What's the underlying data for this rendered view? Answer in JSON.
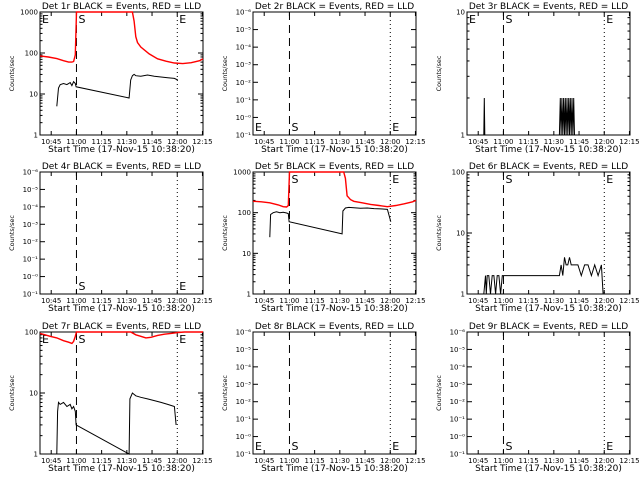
{
  "chart_data": [
    {
      "type": "line",
      "title": "Det 1r BLACK = Events, RED = LLD",
      "xlabel": "Start Time (17-Nov-15 10:38:20)",
      "ylabel": "Counts/sec",
      "x_ticks": [
        "10:45",
        "11:00",
        "11:15",
        "11:30",
        "11:45",
        "12:00",
        "12:15"
      ],
      "y_ticks": [
        "1",
        "10",
        "100",
        "1000"
      ],
      "yscale": "log",
      "ylim": [
        1,
        1000
      ],
      "markers": [
        {
          "label": "E",
          "t": 0.0,
          "style": "dotted"
        },
        {
          "label": "S",
          "t": 21.7,
          "style": "dashed"
        },
        {
          "label": "E",
          "t": 81.7,
          "style": "dotted"
        }
      ],
      "series": [
        {
          "color": "#ff0000",
          "x": [
            0,
            5,
            10,
            14,
            17,
            19,
            20,
            21,
            21.7,
            23,
            30,
            50,
            55,
            56,
            57,
            58,
            60,
            65,
            70,
            75,
            80,
            85,
            90,
            95,
            97
          ],
          "y": [
            85,
            80,
            73,
            65,
            60,
            60,
            62,
            90,
            1000,
            1000,
            1000,
            1000,
            1000,
            600,
            250,
            180,
            140,
            95,
            72,
            63,
            57,
            55,
            58,
            65,
            72
          ]
        },
        {
          "color": "#000000",
          "x": [
            10,
            11,
            12,
            14,
            16,
            18,
            19,
            20,
            21,
            21.5,
            53,
            54,
            55,
            56,
            57,
            60,
            64,
            68,
            72,
            76,
            80,
            82
          ],
          "y": [
            5,
            14,
            17,
            18,
            17,
            19,
            16,
            20,
            18,
            15,
            8,
            22,
            28,
            30,
            28,
            27,
            29,
            27,
            26,
            25,
            24,
            22
          ]
        }
      ]
    },
    {
      "type": "line",
      "title": "Det 2r BLACK = Events, RED = LLD",
      "xlabel": "Start Time (17-Nov-15 10:38:20)",
      "ylabel": "Counts/sec",
      "x_ticks": [
        "10:45",
        "11:00",
        "11:15",
        "11:30",
        "11:45",
        "12:00",
        "12:15"
      ],
      "y_ticks": [
        "10⁻¹",
        "10⁻⁰",
        "10⁻¹",
        "10⁻²",
        "10⁻³",
        "10⁻⁴",
        "10⁻⁵",
        "10⁻⁶"
      ],
      "yscale": "log",
      "markers": [
        {
          "label": "E",
          "t": 0.0,
          "style": "dotted"
        },
        {
          "label": "S",
          "t": 21.7,
          "style": "dashed"
        },
        {
          "label": "E",
          "t": 81.7,
          "style": "dotted"
        }
      ],
      "series": []
    },
    {
      "type": "line",
      "title": "Det 3r BLACK = Events, RED = LLD",
      "xlabel": "Start Time (17-Nov-15 10:38:20)",
      "ylabel": "Counts/sec",
      "x_ticks": [
        "10:45",
        "11:00",
        "11:15",
        "11:30",
        "11:45",
        "12:00",
        "12:15"
      ],
      "y_ticks": [
        "1",
        "10"
      ],
      "yscale": "log",
      "ylim": [
        1,
        10
      ],
      "markers": [
        {
          "label": "E",
          "t": 0.0,
          "style": "dotted"
        },
        {
          "label": "S",
          "t": 21.7,
          "style": "dashed"
        },
        {
          "label": "E",
          "t": 81.7,
          "style": "dotted"
        }
      ],
      "series": [
        {
          "color": "#000000",
          "x": [
            10,
            10.3,
            10.6,
            55,
            55.5,
            56,
            56.5,
            57,
            57.5,
            58,
            58.5,
            59,
            59.5,
            60,
            60.5,
            61,
            61.5,
            62,
            62.5,
            63,
            63.5,
            64
          ],
          "y": [
            1,
            2,
            1,
            1,
            2,
            1,
            2,
            1,
            2,
            1,
            2,
            1,
            2,
            1,
            2,
            1,
            2,
            1,
            2,
            1,
            2,
            1
          ]
        }
      ]
    },
    {
      "type": "line",
      "title": "Det 4r BLACK = Events, RED = LLD",
      "xlabel": "Start Time (17-Nov-15 10:38:20)",
      "ylabel": "Counts/sec",
      "x_ticks": [
        "10:45",
        "11:00",
        "11:15",
        "11:30",
        "11:45",
        "12:00",
        "12:15"
      ],
      "y_ticks": [
        "10⁻¹",
        "10⁻⁰",
        "10⁻¹",
        "10⁻²",
        "10⁻³",
        "10⁻⁴",
        "10⁻⁵",
        "10⁻⁶"
      ],
      "yscale": "log",
      "markers": [
        {
          "label": "S",
          "t": 21.7,
          "style": "dashed"
        },
        {
          "label": "E",
          "t": 81.7,
          "style": "dotted"
        }
      ],
      "series": []
    },
    {
      "type": "line",
      "title": "Det 5r BLACK = Events, RED = LLD",
      "xlabel": "Start Time (17-Nov-15 10:38:20)",
      "ylabel": "Counts/sec",
      "x_ticks": [
        "10:45",
        "11:00",
        "11:15",
        "11:30",
        "11:45",
        "12:00",
        "12:15"
      ],
      "y_ticks": [
        "1",
        "10",
        "100",
        "1000"
      ],
      "yscale": "log",
      "ylim": [
        1,
        1000
      ],
      "markers": [
        {
          "label": "S",
          "t": 21.7,
          "style": "dashed"
        },
        {
          "label": "E",
          "t": 81.7,
          "style": "dotted"
        }
      ],
      "series": [
        {
          "color": "#ff0000",
          "x": [
            0,
            5,
            10,
            15,
            18,
            20,
            21,
            21.7,
            23,
            30,
            50,
            54,
            55,
            56,
            58,
            60,
            65,
            70,
            75,
            80,
            85,
            90,
            95,
            97
          ],
          "y": [
            190,
            185,
            175,
            155,
            140,
            138,
            150,
            1000,
            1000,
            1000,
            1000,
            1000,
            700,
            260,
            210,
            190,
            175,
            160,
            150,
            140,
            150,
            165,
            185,
            200
          ]
        },
        {
          "color": "#000000",
          "x": [
            10,
            10.5,
            12,
            14,
            16,
            18,
            20,
            21,
            21.5,
            53,
            53.5,
            55,
            57,
            60,
            64,
            68,
            72,
            76,
            80,
            82
          ],
          "y": [
            25,
            90,
            100,
            105,
            100,
            102,
            98,
            95,
            60,
            30,
            110,
            130,
            135,
            132,
            128,
            130,
            126,
            124,
            120,
            60
          ]
        }
      ]
    },
    {
      "type": "line",
      "title": "Det 6r BLACK = Events, RED = LLD",
      "xlabel": "Start Time (17-Nov-15 10:38:20)",
      "ylabel": "Counts/sec",
      "x_ticks": [
        "10:45",
        "11:00",
        "11:15",
        "11:30",
        "11:45",
        "12:00",
        "12:15"
      ],
      "y_ticks": [
        "1",
        "10",
        "100"
      ],
      "yscale": "log",
      "ylim": [
        1,
        100
      ],
      "markers": [
        {
          "label": "S",
          "t": 21.7,
          "style": "dashed"
        },
        {
          "label": "E",
          "t": 81.7,
          "style": "dotted"
        }
      ],
      "series": [
        {
          "color": "#000000",
          "x": [
            10,
            11,
            11.5,
            12,
            13,
            14,
            15,
            16,
            17,
            18,
            19,
            20,
            21,
            55,
            56,
            57,
            58,
            59,
            60,
            61,
            62,
            64,
            66,
            68,
            70,
            72,
            74,
            76,
            78,
            80,
            81
          ],
          "y": [
            1,
            2,
            1,
            2,
            2,
            1,
            2,
            2,
            1,
            2,
            2,
            1,
            2,
            2,
            3,
            2,
            4,
            3,
            3,
            4,
            3,
            3,
            3,
            2,
            3,
            3,
            2,
            3,
            2,
            3,
            1
          ]
        }
      ]
    },
    {
      "type": "line",
      "title": "Det 7r BLACK = Events, RED = LLD",
      "xlabel": "Start Time (17-Nov-15 10:38:20)",
      "ylabel": "Counts/sec",
      "x_ticks": [
        "10:45",
        "11:00",
        "11:15",
        "11:30",
        "11:45",
        "12:00",
        "12:15"
      ],
      "y_ticks": [
        "1",
        "10",
        "100"
      ],
      "yscale": "log",
      "ylim": [
        1,
        100
      ],
      "markers": [
        {
          "label": "E",
          "t": 0.0,
          "style": "dotted"
        },
        {
          "label": "S",
          "t": 21.7,
          "style": "dashed"
        },
        {
          "label": "E",
          "t": 81.7,
          "style": "dotted"
        }
      ],
      "series": [
        {
          "color": "#ff0000",
          "x": [
            0,
            3,
            6,
            10,
            14,
            17,
            19,
            20,
            21,
            21.7,
            54,
            57,
            60,
            63,
            66,
            70,
            74,
            78,
            82,
            86,
            90,
            94,
            97
          ],
          "y": [
            95,
            90,
            85,
            80,
            72,
            68,
            65,
            70,
            85,
            100,
            100,
            90,
            85,
            80,
            82,
            88,
            92,
            95,
            98,
            100,
            100,
            100,
            100
          ]
        },
        {
          "color": "#000000",
          "x": [
            10,
            10.5,
            11,
            12,
            14,
            16,
            18,
            19,
            20,
            21,
            21.5,
            53,
            53.5,
            55,
            57,
            60,
            64,
            68,
            72,
            76,
            80,
            81
          ],
          "y": [
            1,
            5,
            7,
            6.5,
            7,
            6,
            6.5,
            5.5,
            6,
            5,
            3,
            1,
            8,
            10,
            9,
            8.5,
            8,
            7.5,
            7,
            6.5,
            6,
            3
          ]
        }
      ]
    },
    {
      "type": "line",
      "title": "Det 8r BLACK = Events, RED = LLD",
      "xlabel": "Start Time (17-Nov-15 10:38:20)",
      "ylabel": "Counts/sec",
      "x_ticks": [
        "10:45",
        "11:00",
        "11:15",
        "11:30",
        "11:45",
        "12:00",
        "12:15"
      ],
      "y_ticks": [
        "10⁻¹",
        "10⁻⁰",
        "10⁻¹",
        "10⁻²",
        "10⁻³",
        "10⁻⁴",
        "10⁻⁵",
        "10⁻⁶"
      ],
      "yscale": "log",
      "markers": [
        {
          "label": "E",
          "t": 0.0,
          "style": "dotted"
        },
        {
          "label": "S",
          "t": 21.7,
          "style": "dashed"
        },
        {
          "label": "E",
          "t": 81.7,
          "style": "dotted"
        }
      ],
      "series": []
    },
    {
      "type": "line",
      "title": "Det 9r BLACK = Events, RED = LLD",
      "xlabel": "Start Time (17-Nov-15 10:38:20)",
      "ylabel": "Counts/sec",
      "x_ticks": [
        "10:45",
        "11:00",
        "11:15",
        "11:30",
        "11:45",
        "12:00",
        "12:15"
      ],
      "y_ticks": [
        "10⁻¹",
        "10⁻⁰",
        "10⁻¹",
        "10⁻²",
        "10⁻³",
        "10⁻⁴",
        "10⁻⁵",
        "10⁻⁶"
      ],
      "yscale": "log",
      "markers": [
        {
          "label": "S",
          "t": 21.7,
          "style": "dashed"
        },
        {
          "label": "E",
          "t": 81.7,
          "style": "dotted"
        }
      ],
      "series": []
    }
  ]
}
